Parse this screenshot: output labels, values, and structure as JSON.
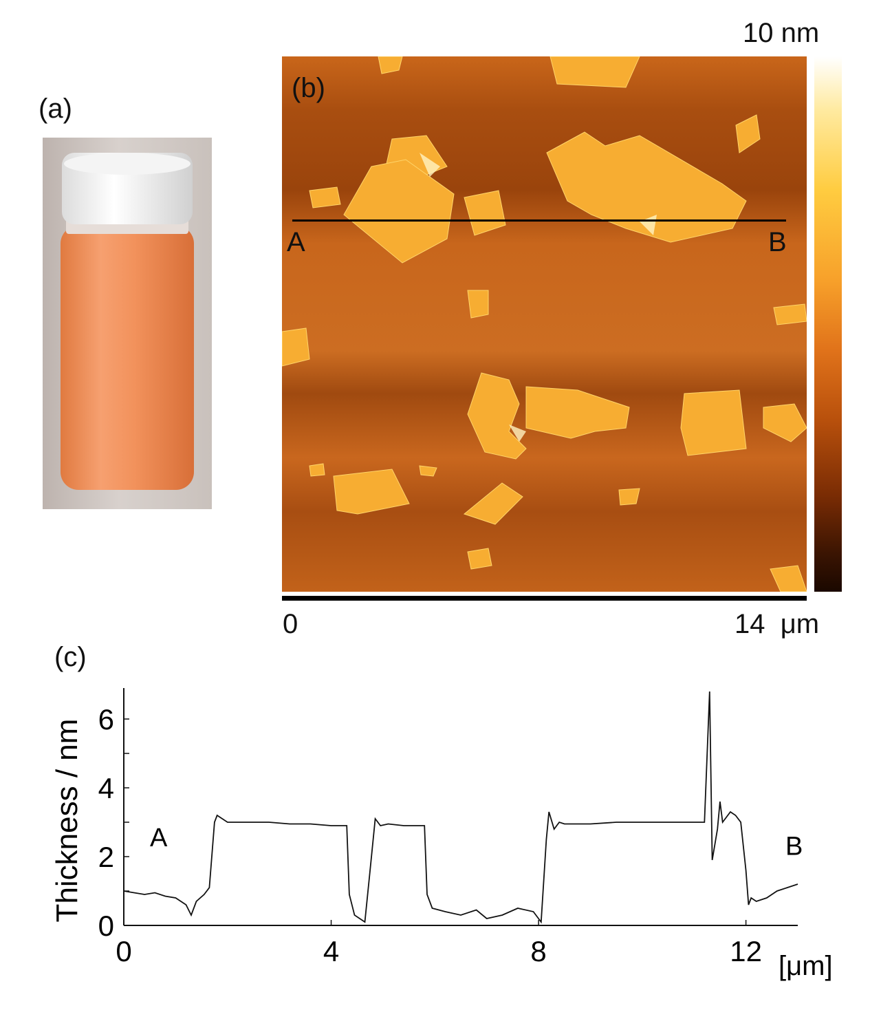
{
  "panel_a": {
    "label": "(a)"
  },
  "panel_b": {
    "label": "(b)",
    "point_a": "A",
    "point_b": "B",
    "colorbar_max": "10 nm",
    "scale_start": "0",
    "scale_end": "14  μm"
  },
  "panel_c": {
    "label": "(c)"
  },
  "chart_data": {
    "type": "line",
    "ylabel": "Thickness / nm",
    "xlabel": "[μm]",
    "xlim": [
      0,
      13
    ],
    "ylim": [
      0,
      6.5
    ],
    "x_ticks": [
      "0",
      "4",
      "8",
      "12"
    ],
    "y_ticks": [
      "0",
      "2",
      "4",
      "6"
    ],
    "annotations": [
      "A",
      "B"
    ],
    "series": [
      {
        "color": "#111111",
        "x": [
          0,
          0.2,
          0.4,
          0.6,
          0.8,
          1.0,
          1.2,
          1.3,
          1.4,
          1.55,
          1.65,
          1.75,
          1.8,
          2.0,
          2.4,
          2.8,
          3.2,
          3.6,
          4.0,
          4.3,
          4.35,
          4.45,
          4.55,
          4.65,
          4.75,
          4.85,
          4.95,
          5.1,
          5.4,
          5.8,
          5.85,
          5.95,
          6.2,
          6.5,
          6.8,
          7.0,
          7.3,
          7.6,
          7.9,
          8.05,
          8.15,
          8.2,
          8.3,
          8.4,
          8.5,
          8.7,
          9.0,
          9.5,
          10.0,
          10.5,
          10.7,
          11.0,
          11.2,
          11.3,
          11.35,
          11.45,
          11.5,
          11.55,
          11.7,
          11.8,
          11.9,
          12.0,
          12.05,
          12.1,
          12.2,
          12.4,
          12.6,
          12.8,
          13.0
        ],
        "y": [
          1.0,
          0.95,
          0.9,
          0.95,
          0.85,
          0.8,
          0.6,
          0.3,
          0.7,
          0.9,
          1.1,
          3.0,
          3.2,
          3.0,
          3.0,
          3.0,
          2.95,
          2.95,
          2.9,
          2.9,
          0.9,
          0.3,
          0.2,
          0.1,
          1.6,
          3.1,
          2.9,
          2.95,
          2.9,
          2.9,
          0.9,
          0.5,
          0.4,
          0.3,
          0.45,
          0.2,
          0.3,
          0.5,
          0.4,
          0.1,
          2.5,
          3.3,
          2.8,
          3.0,
          2.95,
          2.95,
          2.95,
          3.0,
          3.0,
          3.0,
          3.0,
          3.0,
          3.0,
          6.8,
          1.9,
          2.8,
          3.6,
          3.0,
          3.3,
          3.2,
          3.0,
          1.6,
          0.6,
          0.8,
          0.7,
          0.8,
          1.0,
          1.1,
          1.2
        ]
      }
    ]
  }
}
